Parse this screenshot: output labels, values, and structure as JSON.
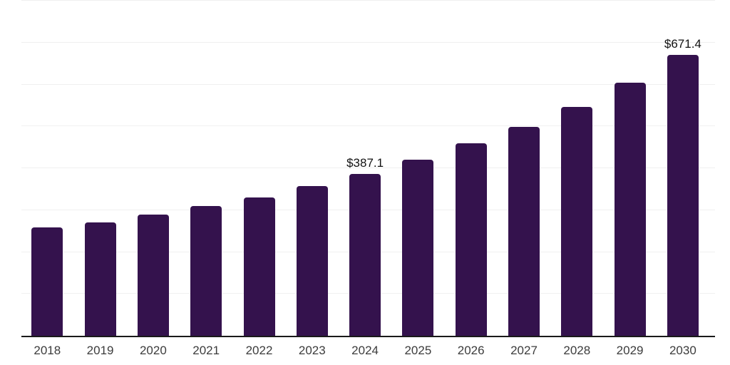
{
  "chart_data": {
    "type": "bar",
    "title": "",
    "xlabel": "",
    "ylabel": "",
    "categories": [
      "2018",
      "2019",
      "2020",
      "2021",
      "2022",
      "2023",
      "2024",
      "2025",
      "2026",
      "2027",
      "2028",
      "2029",
      "2030"
    ],
    "values": [
      258,
      271,
      290,
      310,
      331,
      358,
      387.1,
      421,
      459,
      498,
      547,
      605,
      671.4
    ],
    "data_labels": [
      null,
      null,
      null,
      null,
      null,
      null,
      "$387.1",
      null,
      null,
      null,
      null,
      null,
      "$671.4"
    ],
    "ylim": [
      0,
      800
    ],
    "gridline_interval": 100,
    "grid_visible": true,
    "legend_position": "none",
    "colors": {
      "bar": "#34124d",
      "axis_line": "#1a1a1a",
      "gridline": "#f0f0f0",
      "data_label_text": "#111111",
      "tick_label_text": "#3c3c3c",
      "background": "#ffffff"
    }
  }
}
